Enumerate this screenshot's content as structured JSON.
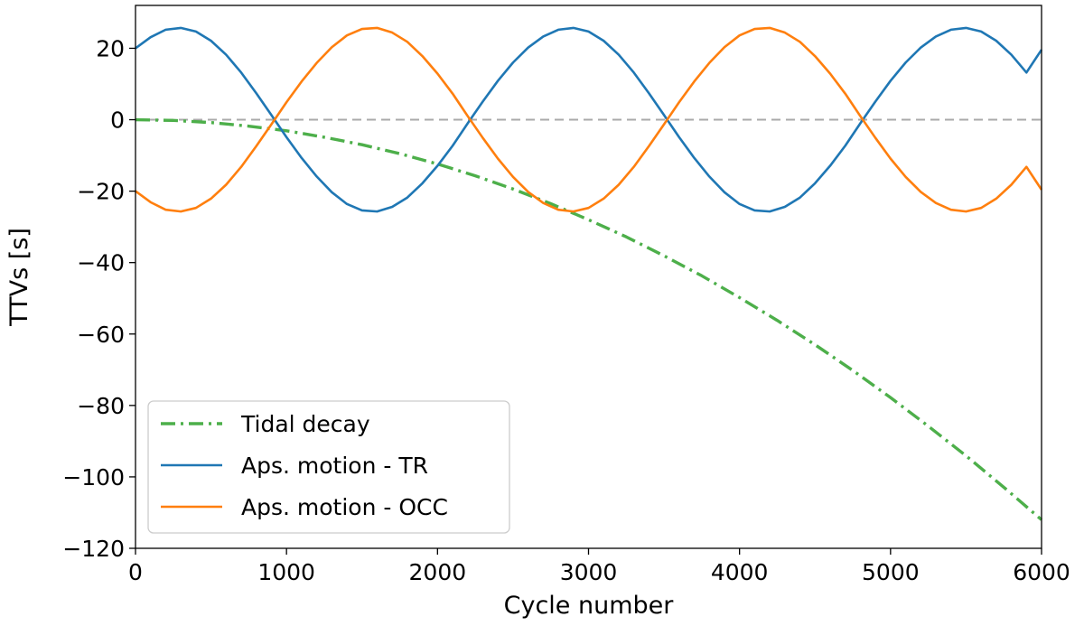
{
  "chart_data": {
    "type": "line",
    "title": "",
    "xlabel": "Cycle number",
    "ylabel": "TTVs [s]",
    "xlim": [
      0,
      6000
    ],
    "ylim": [
      -120,
      32
    ],
    "xticks": [
      0,
      1000,
      2000,
      3000,
      4000,
      5000,
      6000
    ],
    "xtick_labels": [
      "0",
      "1000",
      "2000",
      "3000",
      "4000",
      "5000",
      "6000"
    ],
    "yticks": [
      -120,
      -100,
      -80,
      -60,
      -40,
      -20,
      0,
      20
    ],
    "ytick_labels": [
      "−120",
      "−100",
      "−80",
      "−60",
      "−40",
      "−20",
      "0",
      "20"
    ],
    "grid": false,
    "legend_position": "lower-left",
    "reference_line": {
      "y": 0,
      "style": "dashed",
      "color": "#aaaaaa"
    },
    "series": [
      {
        "name": "Tidal decay",
        "color": "#4daf4a",
        "style": "dashdot",
        "x": [
          0,
          250,
          500,
          750,
          1000,
          1250,
          1500,
          1750,
          2000,
          2250,
          2500,
          2750,
          3000,
          3250,
          3500,
          3750,
          4000,
          4250,
          4500,
          4750,
          5000,
          5250,
          5500,
          5750,
          6000
        ],
        "y": [
          0,
          -0.2,
          -0.8,
          -1.8,
          -3.1,
          -4.9,
          -7.0,
          -9.5,
          -12.4,
          -15.7,
          -19.4,
          -23.5,
          -28.0,
          -32.8,
          -38.1,
          -43.7,
          -49.8,
          -56.2,
          -63.0,
          -70.2,
          -77.8,
          -85.8,
          -94.1,
          -102.9,
          -112.0
        ]
      },
      {
        "name": "Aps. motion - TR",
        "color": "#1f77b4",
        "style": "solid",
        "amplitude": 25.7,
        "period_cycles": 2700,
        "y_at_0": 20,
        "x": [
          0,
          100,
          200,
          300,
          400,
          500,
          600,
          700,
          800,
          900,
          1000,
          1100,
          1200,
          1300,
          1400,
          1500,
          1600,
          1700,
          1800,
          1900,
          2000,
          2100,
          2200,
          2300,
          2400,
          2500,
          2600,
          2700,
          2800,
          2900,
          3000,
          3100,
          3200,
          3300,
          3400,
          3500,
          3600,
          3700,
          3800,
          3900,
          4000,
          4100,
          4200,
          4300,
          4400,
          4500,
          4600,
          4700,
          4800,
          4900,
          5000,
          5100,
          5200,
          5300,
          5400,
          5500,
          5600,
          5700,
          5800,
          5900,
          6000
        ],
        "y": [
          20.0,
          23.1,
          25.2,
          25.7,
          24.7,
          22.1,
          18.2,
          13.2,
          7.4,
          1.3,
          -4.9,
          -10.7,
          -15.9,
          -20.3,
          -23.6,
          -25.4,
          -25.7,
          -24.4,
          -21.8,
          -17.8,
          -12.9,
          -7.3,
          -1.0,
          5.1,
          10.9,
          16.0,
          20.2,
          23.3,
          25.2,
          25.7,
          24.7,
          22.1,
          18.2,
          13.2,
          7.4,
          1.3,
          -4.9,
          -10.7,
          -15.9,
          -20.3,
          -23.6,
          -25.4,
          -25.7,
          -24.4,
          -21.8,
          -17.8,
          -12.9,
          -7.3,
          -1.0,
          5.1,
          10.9,
          16.0,
          20.2,
          23.3,
          25.2,
          25.7,
          24.7,
          22.1,
          18.2,
          13.2,
          19.6
        ]
      },
      {
        "name": "Aps. motion - OCC",
        "color": "#ff7f0e",
        "style": "solid",
        "amplitude": 25.7,
        "period_cycles": 2700,
        "y_at_0": -20,
        "x": [
          0,
          100,
          200,
          300,
          400,
          500,
          600,
          700,
          800,
          900,
          1000,
          1100,
          1200,
          1300,
          1400,
          1500,
          1600,
          1700,
          1800,
          1900,
          2000,
          2100,
          2200,
          2300,
          2400,
          2500,
          2600,
          2700,
          2800,
          2900,
          3000,
          3100,
          3200,
          3300,
          3400,
          3500,
          3600,
          3700,
          3800,
          3900,
          4000,
          4100,
          4200,
          4300,
          4400,
          4500,
          4600,
          4700,
          4800,
          4900,
          5000,
          5100,
          5200,
          5300,
          5400,
          5500,
          5600,
          5700,
          5800,
          5900,
          6000
        ],
        "y": [
          -20.0,
          -23.1,
          -25.2,
          -25.7,
          -24.7,
          -22.1,
          -18.2,
          -13.2,
          -7.4,
          -1.3,
          4.9,
          10.7,
          15.9,
          20.3,
          23.6,
          25.4,
          25.7,
          24.4,
          21.8,
          17.8,
          12.9,
          7.3,
          1.0,
          -5.1,
          -10.9,
          -16.0,
          -20.2,
          -23.3,
          -25.2,
          -25.7,
          -24.7,
          -22.1,
          -18.2,
          -13.2,
          -7.4,
          -1.3,
          4.9,
          10.7,
          15.9,
          20.3,
          23.6,
          25.4,
          25.7,
          24.4,
          21.8,
          17.8,
          12.9,
          7.3,
          1.0,
          -5.1,
          -10.9,
          -16.0,
          -20.2,
          -23.3,
          -25.2,
          -25.7,
          -24.7,
          -22.1,
          -18.2,
          -13.2,
          -19.6
        ]
      }
    ]
  }
}
